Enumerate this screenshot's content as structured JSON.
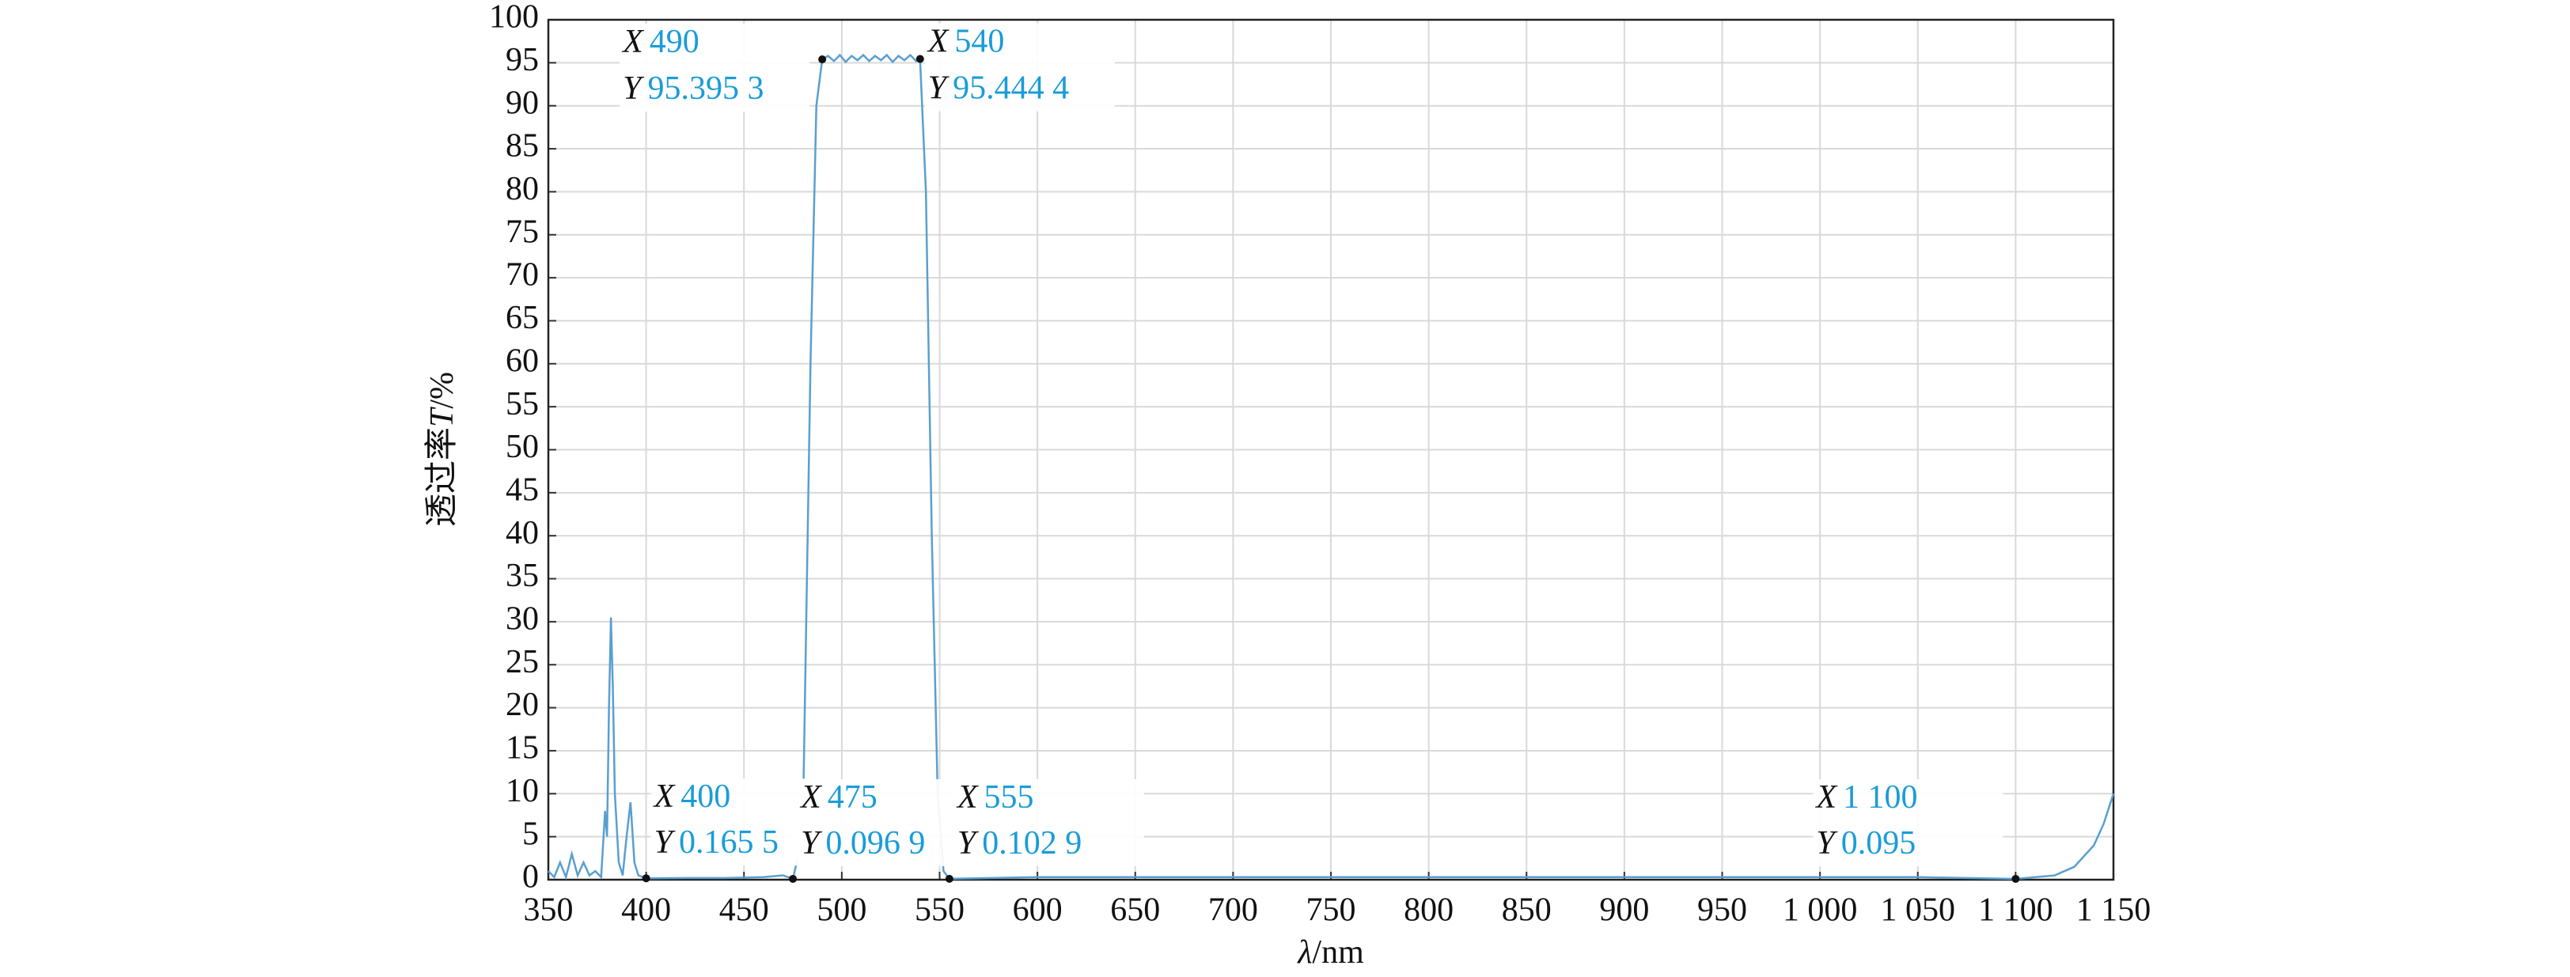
{
  "chart_data": {
    "type": "line",
    "x_label_symbol": "λ",
    "x_label_unit": "/nm",
    "y_label_text": "透过率",
    "y_label_symbol": "T",
    "y_label_unit": "/%",
    "color": "#5a9fcf",
    "grid": true,
    "x": [
      350,
      353,
      356,
      359,
      362,
      365,
      368,
      371,
      374,
      377,
      379,
      380,
      381,
      382,
      383,
      384,
      386,
      388,
      390,
      392,
      394,
      396,
      400,
      420,
      440,
      460,
      470,
      475,
      480,
      484,
      487,
      490,
      493,
      496,
      499,
      502,
      505,
      508,
      511,
      514,
      517,
      520,
      523,
      526,
      529,
      532,
      535,
      538,
      540,
      543,
      546,
      549,
      552,
      555,
      600,
      700,
      800,
      900,
      1000,
      1050,
      1100,
      1120,
      1130,
      1140,
      1145,
      1150
    ],
    "values": [
      1,
      0.3,
      2,
      0.3,
      3,
      0.5,
      2,
      0.5,
      1,
      0.3,
      8,
      5,
      20,
      30.5,
      22,
      10,
      2,
      0.5,
      5,
      9,
      2,
      0.5,
      0.1655,
      0.2,
      0.2,
      0.3,
      0.5,
      0.0969,
      5,
      60,
      90,
      95.3953,
      95.8,
      95.2,
      95.9,
      95.1,
      95.8,
      95.3,
      95.9,
      95.2,
      95.8,
      95.3,
      95.9,
      95.1,
      95.8,
      95.3,
      95.9,
      95.2,
      95.4444,
      80,
      40,
      10,
      1,
      0.1029,
      0.3,
      0.3,
      0.3,
      0.3,
      0.3,
      0.3,
      0.095,
      0.5,
      1.5,
      4,
      6.5,
      10
    ],
    "xlim": [
      350,
      1150
    ],
    "xticks": [
      350,
      400,
      450,
      500,
      550,
      600,
      650,
      700,
      750,
      800,
      850,
      900,
      950,
      {
        "value": 1000,
        "label": "1 000"
      },
      {
        "value": 1050,
        "label": "1 050"
      },
      {
        "value": 1100,
        "label": "1 100"
      },
      {
        "value": 1150,
        "label": "1 150"
      }
    ],
    "ylim": [
      0,
      100
    ],
    "yticks": [
      0,
      5,
      10,
      15,
      20,
      25,
      30,
      35,
      40,
      45,
      50,
      55,
      60,
      65,
      70,
      75,
      80,
      85,
      90,
      95,
      100
    ],
    "tip_x_name": "X",
    "tip_y_name": "Y",
    "annotations": [
      {
        "x": 400,
        "y": 0.1655,
        "x_label": "400",
        "y_label": "0.165 5"
      },
      {
        "x": 475,
        "y": 0.0969,
        "x_label": "475",
        "y_label": "0.096 9"
      },
      {
        "x": 490,
        "y": 95.3953,
        "x_label": "490",
        "y_label": "95.395 3"
      },
      {
        "x": 540,
        "y": 95.4444,
        "x_label": "540",
        "y_label": "95.444 4"
      },
      {
        "x": 555,
        "y": 0.1029,
        "x_label": "555",
        "y_label": "0.102 9"
      },
      {
        "x": 1100,
        "y": 0.095,
        "x_label": "1 100",
        "y_label": "0.095"
      }
    ]
  }
}
